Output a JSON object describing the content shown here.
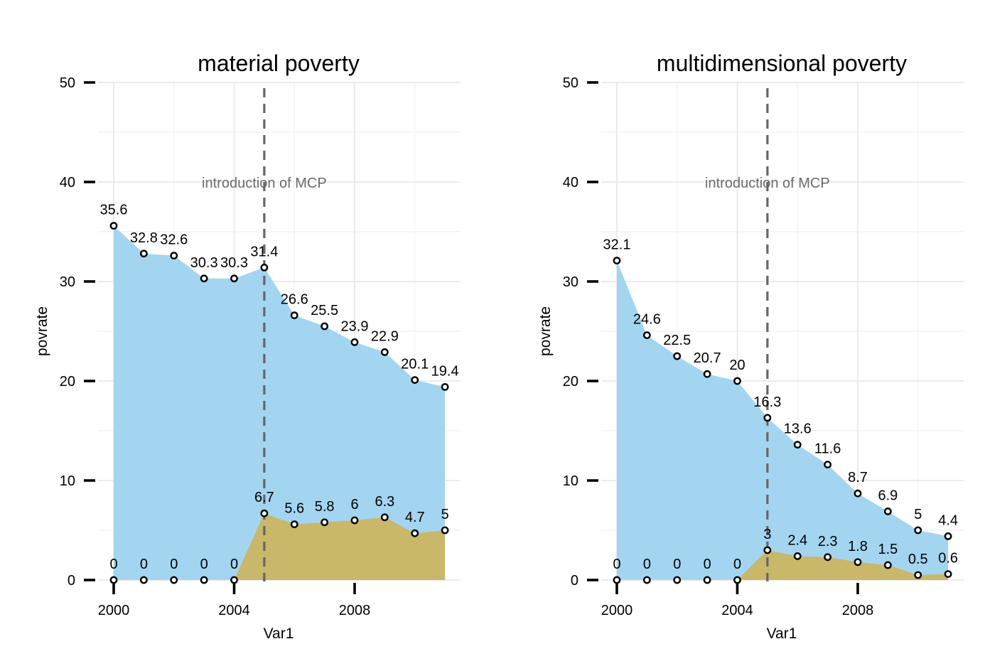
{
  "colors": {
    "area_total": "#a3d5f1",
    "area_sub": "#c9b76a",
    "grid_major": "#e9e9e9",
    "grid_minor": "#f4f4f4",
    "vline": "#666666",
    "point_stroke": "#000000",
    "point_fill": "#ffffff"
  },
  "chart_data": [
    {
      "type": "area",
      "title": "material poverty",
      "xlabel": "Var1",
      "ylabel": "povrate",
      "xlim": [
        1999.75,
        2011.55
      ],
      "ylim": [
        0,
        50
      ],
      "x_ticks": [
        2000,
        2004,
        2008
      ],
      "y_ticks": [
        0,
        10,
        20,
        30,
        40,
        50
      ],
      "grid": true,
      "x": [
        2000,
        2001,
        2002,
        2003,
        2004,
        2005,
        2006,
        2007,
        2008,
        2009,
        2010,
        2011
      ],
      "series": [
        {
          "values": [
            35.6,
            32.8,
            32.6,
            30.3,
            30.3,
            31.4,
            26.6,
            25.5,
            23.9,
            22.9,
            20.1,
            19.4
          ],
          "labels": [
            "35.6",
            "32.8",
            "32.6",
            "30.3",
            "30.3",
            "31.4",
            "26.6",
            "25.5",
            "23.9",
            "22.9",
            "20.1",
            "19.4"
          ]
        },
        {
          "values": [
            0,
            0,
            0,
            0,
            0,
            6.7,
            5.6,
            5.8,
            6,
            6.3,
            4.7,
            5
          ],
          "labels": [
            "0",
            "0",
            "0",
            "0",
            "0",
            "6.7",
            "5.6",
            "5.8",
            "6",
            "6.3",
            "4.7",
            "5"
          ]
        }
      ],
      "annotation": {
        "x": 2005,
        "y": 40,
        "text": "introduction of MCP"
      }
    },
    {
      "type": "area",
      "title": "multidimensional poverty",
      "xlabel": "Var1",
      "ylabel": "povrate",
      "xlim": [
        1999.75,
        2011.55
      ],
      "ylim": [
        0,
        50
      ],
      "x_ticks": [
        2000,
        2004,
        2008
      ],
      "y_ticks": [
        0,
        10,
        20,
        30,
        40,
        50
      ],
      "grid": true,
      "x": [
        2000,
        2001,
        2002,
        2003,
        2004,
        2005,
        2006,
        2007,
        2008,
        2009,
        2010,
        2011
      ],
      "series": [
        {
          "values": [
            32.1,
            24.6,
            22.5,
            20.7,
            20,
            16.3,
            13.6,
            11.6,
            8.7,
            6.9,
            5,
            4.4
          ],
          "labels": [
            "32.1",
            "24.6",
            "22.5",
            "20.7",
            "20",
            "16.3",
            "13.6",
            "11.6",
            "8.7",
            "6.9",
            "5",
            "4.4"
          ]
        },
        {
          "values": [
            0,
            0,
            0,
            0,
            0,
            3,
            2.4,
            2.3,
            1.8,
            1.5,
            0.5,
            0.6
          ],
          "labels": [
            "0",
            "0",
            "0",
            "0",
            "0",
            "3",
            "2.4",
            "2.3",
            "1.8",
            "1.5",
            "0.5",
            "0.6"
          ]
        }
      ],
      "annotation": {
        "x": 2005,
        "y": 40,
        "text": "introduction of MCP"
      }
    }
  ]
}
